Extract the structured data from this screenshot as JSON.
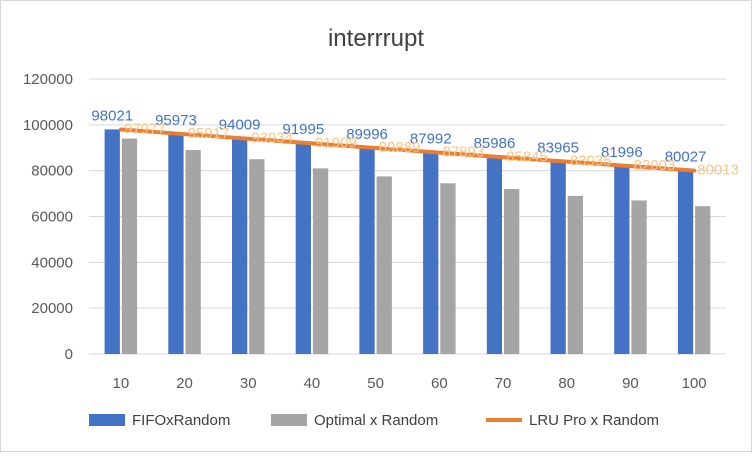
{
  "chart_data": {
    "type": "bar",
    "title": "interrrupt",
    "xlabel": "",
    "ylabel": "",
    "categories": [
      "10",
      "20",
      "30",
      "40",
      "50",
      "60",
      "70",
      "80",
      "90",
      "100"
    ],
    "ylim": [
      0,
      120000
    ],
    "yticks": [
      "0",
      "20000",
      "40000",
      "60000",
      "80000",
      "100000",
      "120000"
    ],
    "grid": "horizontal",
    "legend_position": "bottom",
    "series": [
      {
        "name": "FIFOxRandom",
        "kind": "bar",
        "color": "#4472C4",
        "values": [
          98021,
          95973,
          94009,
          91995,
          89996,
          87992,
          85986,
          83965,
          81996,
          80027
        ],
        "labels": [
          "98021",
          "95973",
          "94009",
          "91995",
          "89996",
          "87992",
          "85986",
          "83965",
          "81996",
          "80027"
        ]
      },
      {
        "name": "Optimal x Random",
        "kind": "bar",
        "color": "#A5A5A5",
        "values": [
          94000,
          89000,
          85000,
          81000,
          77500,
          74500,
          72000,
          69000,
          67000,
          64500
        ]
      },
      {
        "name": "LRU Pro x Random",
        "kind": "line",
        "color": "#ED7D31",
        "label_color": "#F4C88A",
        "values": [
          97977,
          95917,
          93934,
          91909,
          89889,
          87893,
          85845,
          83935,
          82003,
          80013
        ],
        "labels": [
          "97977",
          "95917",
          "93934",
          "91909",
          "89889",
          "87893",
          "85845",
          "83935",
          "82003",
          "80013"
        ]
      }
    ]
  }
}
